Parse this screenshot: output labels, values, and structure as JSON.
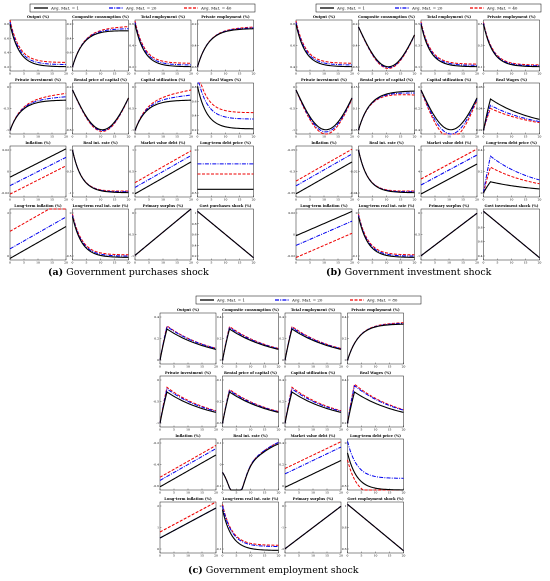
{
  "legend": {
    "entries": [
      "Avg. Mat. = 1",
      "Avg. Mat. = 20",
      "Avg. Mat. = 40"
    ],
    "entries_c": [
      "Avg. Mat. = 1",
      "Avg. Mat. = 20",
      "Avg. Mat. = 80"
    ]
  },
  "colors": {
    "s1": "#000000",
    "s2": "#0000ee",
    "s3": "#ee0000"
  },
  "captions": {
    "a": {
      "letter": "(a)",
      "text": " Government purchases shock"
    },
    "b": {
      "letter": "(b)",
      "text": " Government investment shock"
    },
    "c": {
      "letter": "(c)",
      "text": " Government employment shock"
    }
  },
  "chart_data": [
    {
      "type": "line",
      "id": "a",
      "x": [
        0,
        20
      ],
      "xticks": [
        "0",
        "5",
        "10",
        "15",
        "20"
      ],
      "titles": [
        "Output (%)",
        "Composite consumption (%)",
        "Total employment (%)",
        "Private employment (%)",
        "Private investment (%)",
        "Rental price of capital (%)",
        "Capital utilization (%)",
        "Real Wages (%)",
        "Inflation (%)",
        "Real int. rate (%)",
        "Market value debt (%)",
        "Long-term debt price (%)",
        "Long-term inflation (%)",
        "Long-term real int. rate (%)",
        "Primary surplus (%)",
        "Govt purchases shock (%)"
      ]
    },
    {
      "type": "line",
      "id": "b",
      "x": [
        0,
        20
      ],
      "xticks": [
        "0",
        "5",
        "10",
        "15",
        "20"
      ],
      "titles": [
        "Output (%)",
        "Composite consumption (%)",
        "Total employment (%)",
        "Private employment (%)",
        "Private investment (%)",
        "Rental price of capital (%)",
        "Capital utilization (%)",
        "Real Wages (%)",
        "Inflation (%)",
        "Real int. rate (%)",
        "Market value debt (%)",
        "Long-term debt price (%)",
        "Long-term inflation (%)",
        "Long-term real int. rate (%)",
        "Primary surplus (%)",
        "Govt investment shock (%)"
      ]
    },
    {
      "type": "line",
      "id": "c",
      "x": [
        0,
        20
      ],
      "xticks": [
        "0",
        "5",
        "10",
        "15",
        "20"
      ],
      "titles": [
        "Output (%)",
        "Composite consumption (%)",
        "Total employment (%)",
        "Private employment (%)",
        "Private investment (%)",
        "Rental price of capital (%)",
        "Capital utilization (%)",
        "Real Wages (%)",
        "Inflation (%)",
        "Real int. rate (%)",
        "Market value debt (%)",
        "Long-term debt price (%)",
        "Long-term inflation (%)",
        "Long-term real int. rate (%)",
        "Primary surplus (%)",
        "Govt employment shock (%)"
      ]
    }
  ]
}
